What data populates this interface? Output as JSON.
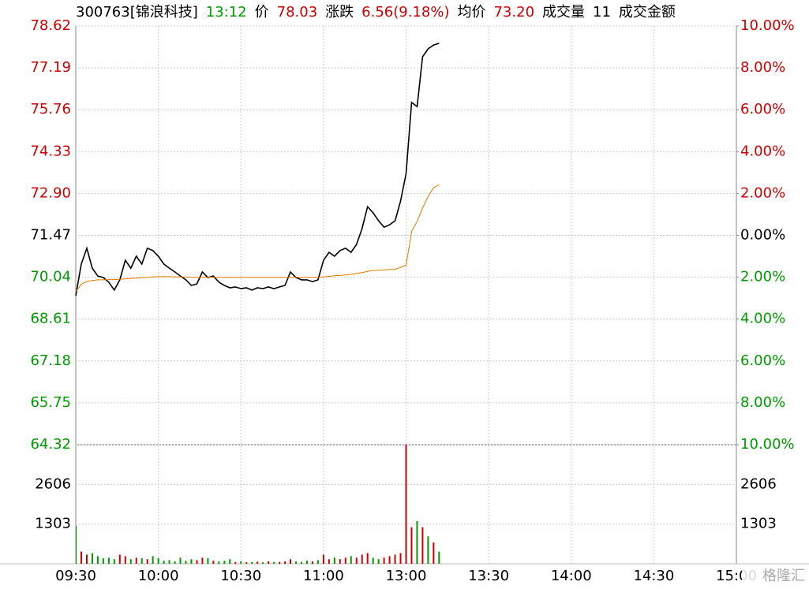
{
  "chart_data": {
    "type": "intraday",
    "header": [
      {
        "text": "300763[锦浪科技]",
        "color": "#000000"
      },
      {
        "text": "13:12",
        "color": "#009900"
      },
      {
        "text": "价",
        "color": "#000000"
      },
      {
        "text": "78.03",
        "color": "#cc0000"
      },
      {
        "text": "涨跌",
        "color": "#000000"
      },
      {
        "text": "6.56(9.18%)",
        "color": "#cc0000"
      },
      {
        "text": "均价",
        "color": "#000000"
      },
      {
        "text": "73.20",
        "color": "#cc0000"
      },
      {
        "text": "成交量",
        "color": "#000000"
      },
      {
        "text": "11",
        "color": "#000000"
      },
      {
        "text": "成交金额",
        "color": "#000000"
      }
    ],
    "xlim": [
      0,
      240
    ],
    "xticks": [
      {
        "value": 0,
        "label": "09:30"
      },
      {
        "value": 30,
        "label": "10:00"
      },
      {
        "value": 60,
        "label": "10:30"
      },
      {
        "value": 90,
        "label": "11:00"
      },
      {
        "value": 120,
        "label": "13:00"
      },
      {
        "value": 150,
        "label": "13:30"
      },
      {
        "value": 180,
        "label": "14:00"
      },
      {
        "value": 210,
        "label": "14:30"
      },
      {
        "value": 240,
        "label": "15:00"
      }
    ],
    "ylim": [
      64.32,
      78.62
    ],
    "yticks": [
      78.62,
      77.19,
      75.76,
      74.33,
      {
        "value": 72.9,
        "label": "72.90"
      },
      71.47,
      70.04,
      68.61,
      67.18,
      65.75,
      64.32
    ],
    "y2lim": [
      -10,
      10
    ],
    "y2ticks": [
      {
        "value": 10,
        "label": "10.00%"
      },
      {
        "value": 8,
        "label": "8.00%"
      },
      {
        "value": 6,
        "label": "6.00%"
      },
      {
        "value": 4,
        "label": "4.00%"
      },
      {
        "value": 2,
        "label": "2.00%"
      },
      {
        "value": 0,
        "label": "0.00%"
      },
      {
        "value": -2,
        "label": "2.00%"
      },
      {
        "value": -4,
        "label": "4.00%"
      },
      {
        "value": -6,
        "label": "6.00%"
      },
      {
        "value": -8,
        "label": "8.00%"
      },
      {
        "value": -10,
        "label": "10.00%"
      }
    ],
    "grid": true,
    "x": [
      0,
      2,
      4,
      6,
      8,
      10,
      12,
      14,
      16,
      18,
      20,
      22,
      24,
      26,
      28,
      30,
      32,
      34,
      36,
      38,
      40,
      42,
      44,
      46,
      48,
      50,
      52,
      54,
      56,
      58,
      60,
      62,
      64,
      66,
      68,
      70,
      72,
      74,
      76,
      78,
      80,
      82,
      84,
      86,
      88,
      90,
      92,
      94,
      96,
      98,
      100,
      102,
      104,
      106,
      108,
      110,
      112,
      114,
      116,
      118,
      120,
      122,
      124,
      126,
      128,
      130,
      132
    ],
    "series": [
      {
        "name": "价",
        "color": "#000000",
        "values": [
          69.41,
          70.49,
          71.03,
          70.35,
          70.08,
          70.03,
          69.87,
          69.6,
          69.95,
          70.62,
          70.35,
          70.76,
          70.49,
          71.03,
          70.95,
          70.76,
          70.49,
          70.35,
          70.22,
          70.08,
          69.95,
          69.76,
          69.81,
          70.22,
          70.03,
          70.08,
          69.87,
          69.76,
          69.68,
          69.71,
          69.65,
          69.68,
          69.6,
          69.68,
          69.65,
          69.71,
          69.65,
          69.71,
          69.76,
          70.22,
          70.03,
          69.95,
          69.95,
          69.89,
          69.95,
          70.62,
          70.89,
          70.76,
          70.95,
          71.03,
          70.89,
          71.16,
          71.7,
          72.45,
          72.24,
          71.97,
          71.75,
          71.83,
          71.97,
          72.64,
          73.58,
          76.01,
          75.87,
          77.57,
          77.84,
          77.97,
          78.03
        ]
      },
      {
        "name": "均价",
        "color": "#e07800",
        "values": [
          69.55,
          69.8,
          69.9,
          69.93,
          69.95,
          69.95,
          69.96,
          69.96,
          69.97,
          69.98,
          70.0,
          70.01,
          70.02,
          70.04,
          70.05,
          70.06,
          70.06,
          70.06,
          70.05,
          70.05,
          70.05,
          70.04,
          70.04,
          70.04,
          70.04,
          70.04,
          70.04,
          70.04,
          70.04,
          70.04,
          70.04,
          70.04,
          70.04,
          70.04,
          70.04,
          70.04,
          70.04,
          70.04,
          70.04,
          70.04,
          70.04,
          70.04,
          70.04,
          70.04,
          70.04,
          70.05,
          70.07,
          70.09,
          70.1,
          70.12,
          70.14,
          70.17,
          70.2,
          70.24,
          70.27,
          70.28,
          70.29,
          70.3,
          70.31,
          70.38,
          70.45,
          71.6,
          71.95,
          72.4,
          72.8,
          73.1,
          73.2
        ]
      }
    ],
    "volume": {
      "ylim": [
        0,
        3909
      ],
      "yticks": [
        1303,
        2606
      ],
      "values": [
        1250,
        400,
        300,
        350,
        250,
        180,
        200,
        150,
        300,
        250,
        150,
        200,
        180,
        150,
        250,
        180,
        100,
        120,
        80,
        200,
        100,
        150,
        120,
        200,
        180,
        100,
        80,
        100,
        150,
        60,
        80,
        50,
        60,
        70,
        50,
        80,
        60,
        60,
        80,
        150,
        80,
        60,
        100,
        80,
        120,
        300,
        150,
        200,
        150,
        200,
        250,
        200,
        300,
        350,
        200,
        150,
        200,
        250,
        300,
        350,
        3950,
        1200,
        1400,
        1200,
        900,
        700,
        400
      ],
      "colors": [
        "#009900",
        "#cc0000",
        "#cc0000",
        "#009900",
        "#009900",
        "#009900",
        "#009900",
        "#009900",
        "#cc0000",
        "#cc0000",
        "#009900",
        "#cc0000",
        "#009900",
        "#cc0000",
        "#009900",
        "#009900",
        "#009900",
        "#009900",
        "#009900",
        "#009900",
        "#009900",
        "#009900",
        "#cc0000",
        "#cc0000",
        "#009900",
        "#cc0000",
        "#009900",
        "#009900",
        "#009900",
        "#cc0000",
        "#009900",
        "#cc0000",
        "#009900",
        "#cc0000",
        "#009900",
        "#cc0000",
        "#009900",
        "#cc0000",
        "#cc0000",
        "#cc0000",
        "#009900",
        "#009900",
        "#009900",
        "#cc0000",
        "#009900",
        "#cc0000",
        "#cc0000",
        "#009900",
        "#cc0000",
        "#cc0000",
        "#009900",
        "#cc0000",
        "#cc0000",
        "#cc0000",
        "#009900",
        "#009900",
        "#cc0000",
        "#cc0000",
        "#cc0000",
        "#cc0000",
        "#cc0000",
        "#cc0000",
        "#009900",
        "#cc0000",
        "#009900",
        "#cc0000",
        "#009900"
      ]
    },
    "watermark": "格隆汇"
  }
}
